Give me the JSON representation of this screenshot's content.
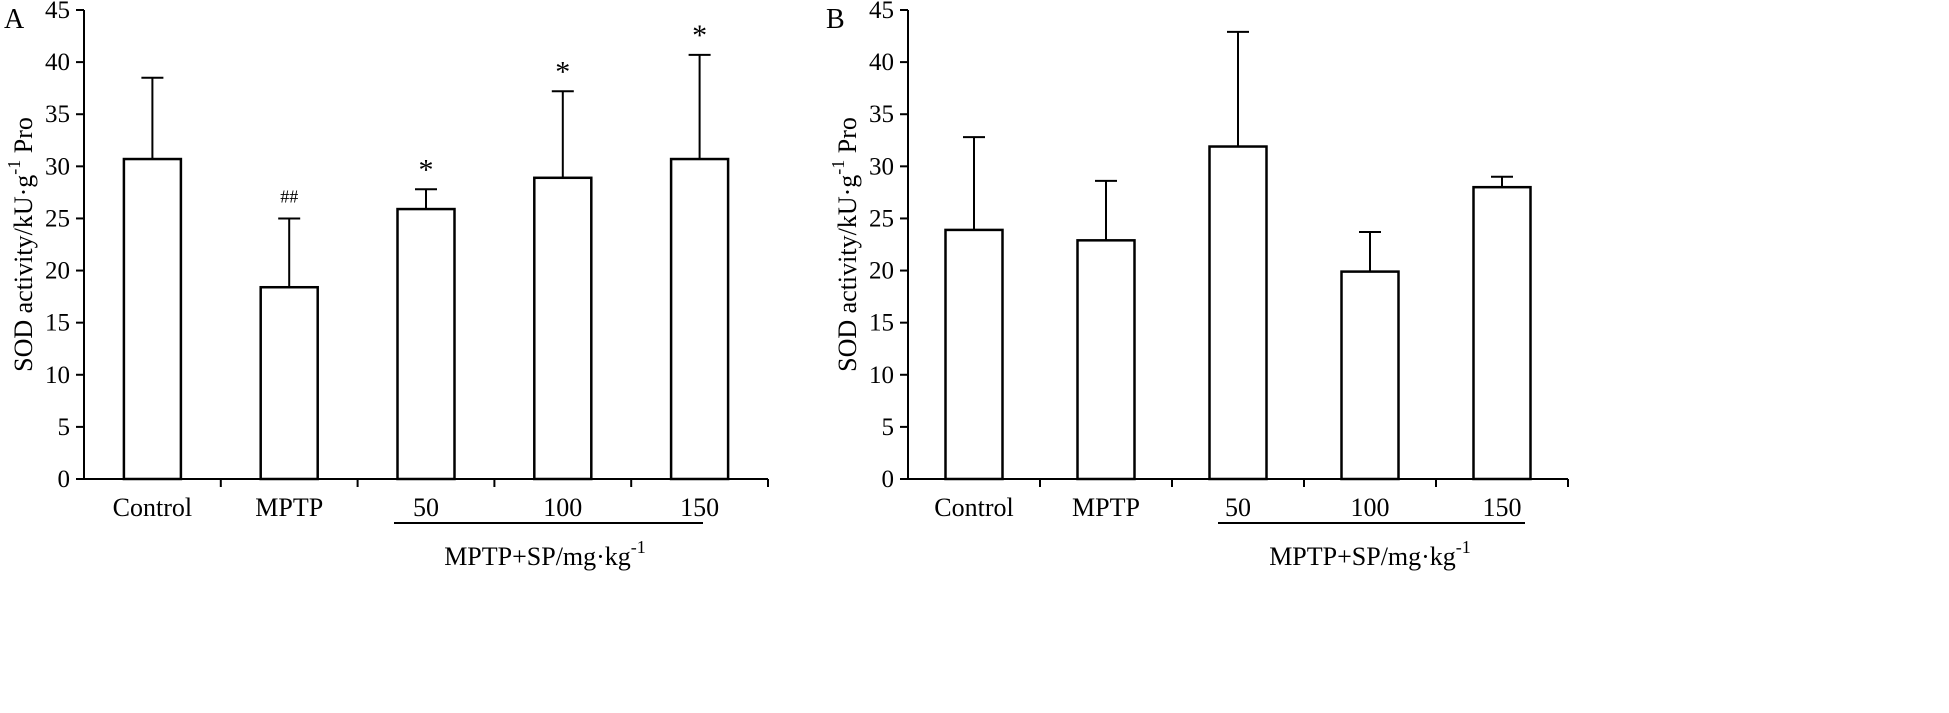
{
  "chart_data": [
    {
      "type": "bar",
      "panel": "A",
      "categories": [
        "Control",
        "MPTP",
        "50",
        "100",
        "150"
      ],
      "values": [
        30.7,
        18.4,
        25.9,
        28.9,
        30.7
      ],
      "errors": [
        7.8,
        6.6,
        1.9,
        8.3,
        10.0
      ],
      "annotations": [
        "",
        "##",
        "*",
        "*",
        "*"
      ],
      "ylabel": "SOD activity/kU·g",
      "ylabel_sup": "-1",
      "ylabel_suffix": " Pro",
      "group_label": "MPTP+SP/mg·kg",
      "group_label_sup": "-1",
      "ylim": [
        0,
        45
      ],
      "yticks": [
        0,
        5,
        10,
        15,
        20,
        25,
        30,
        35,
        40,
        45
      ]
    },
    {
      "type": "bar",
      "panel": "B",
      "categories": [
        "Control",
        "MPTP",
        "50",
        "100",
        "150"
      ],
      "values": [
        23.9,
        22.9,
        31.9,
        19.9,
        28.0
      ],
      "errors": [
        8.9,
        5.7,
        11.0,
        3.8,
        1.0
      ],
      "annotations": [
        "",
        "",
        "",
        "",
        ""
      ],
      "ylabel": "SOD activity/kU·g",
      "ylabel_sup": "-1",
      "ylabel_suffix": " Pro",
      "group_label": "MPTP+SP/mg·kg",
      "group_label_sup": "-1",
      "ylim": [
        0,
        45
      ],
      "yticks": [
        0,
        5,
        10,
        15,
        20,
        25,
        30,
        35,
        40,
        45
      ]
    }
  ]
}
